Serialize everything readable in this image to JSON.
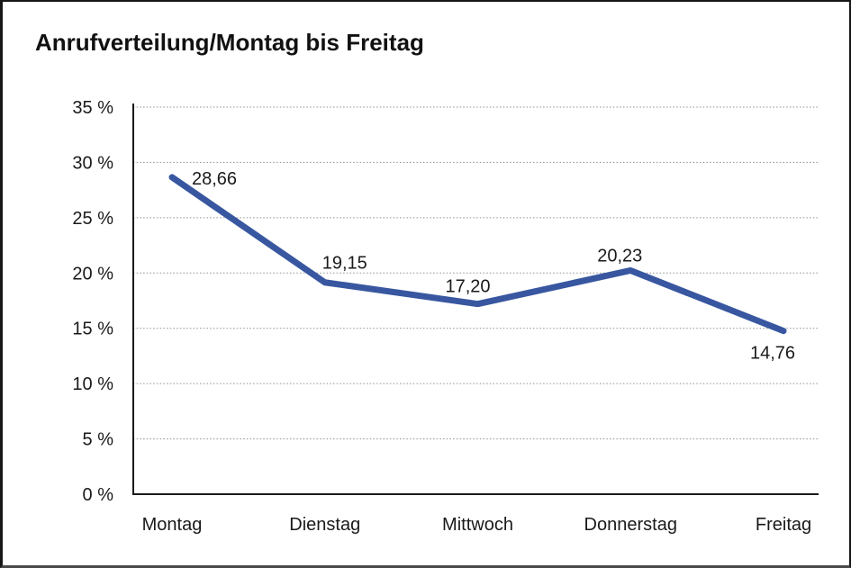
{
  "title": "Anrufverteilung/Montag bis Freitag",
  "colors": {
    "line": "#3857A0",
    "axis": "#1a1a1a",
    "grid": "#8f8f8f",
    "text": "#1a1a1a",
    "background": "#ffffff",
    "frame_border": "#161616"
  },
  "chart_data": {
    "type": "line",
    "title": "Anrufverteilung/Montag bis Freitag",
    "categories": [
      "Montag",
      "Dienstag",
      "Mittwoch",
      "Donnerstag",
      "Freitag"
    ],
    "values": [
      28.66,
      19.15,
      17.2,
      20.23,
      14.76
    ],
    "point_labels": [
      "28,66",
      "19,15",
      "17,20",
      "20,23",
      "14,76"
    ],
    "xlabel": "",
    "ylabel": "",
    "ylim": [
      0,
      35
    ],
    "ytick_step": 5,
    "ytick_labels": [
      "0 %",
      "5 %",
      "10 %",
      "15 %",
      "20 %",
      "25 %",
      "30 %",
      "35 %"
    ],
    "grid": "horizontal-dotted",
    "legend": "none",
    "series_count": 1
  }
}
